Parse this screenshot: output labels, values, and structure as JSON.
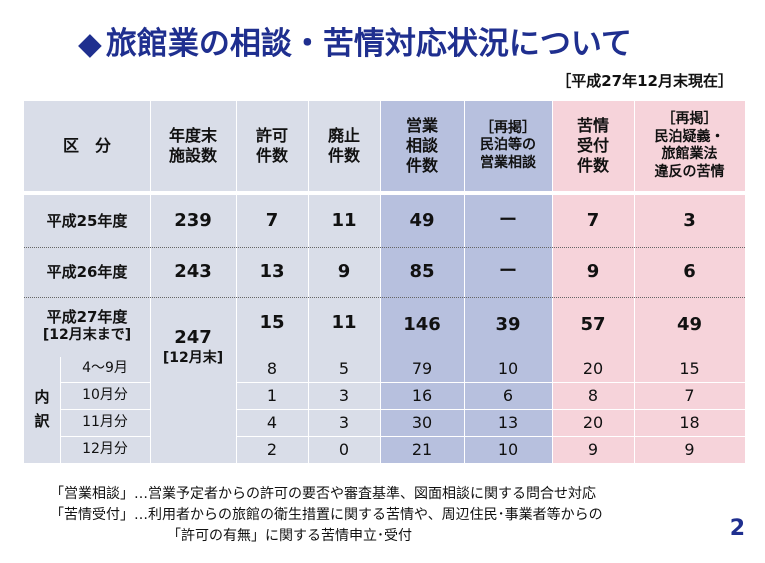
{
  "title": "旅館業の相談・苦情対応状況について",
  "title_marker": "◆",
  "as_of": "［平成27年12月末現在］",
  "headers": {
    "category": "区　分",
    "facilities": [
      "年度末",
      "施設数"
    ],
    "permits": [
      "許可",
      "件数"
    ],
    "closures": [
      "廃止",
      "件数"
    ],
    "business_consult": [
      "営業",
      "相談",
      "件数"
    ],
    "minpaku_consult": [
      "［再掲］",
      "民泊等の",
      "営業相談"
    ],
    "complaints": [
      "苦情",
      "受付",
      "件数"
    ],
    "minpaku_complaints": [
      "［再掲］",
      "民泊疑義・",
      "旅館業法",
      "違反の苦情"
    ]
  },
  "rows": [
    {
      "label": "平成25年度",
      "facilities": "239",
      "permits": "7",
      "closures": "11",
      "business": "49",
      "minpaku": "ー",
      "complaints": "7",
      "minpaku_complaints": "3"
    },
    {
      "label": "平成26年度",
      "facilities": "243",
      "permits": "13",
      "closures": "9",
      "business": "85",
      "minpaku": "ー",
      "complaints": "9",
      "minpaku_complaints": "6"
    },
    {
      "label": "平成27年度",
      "label2": "[12月末まで]",
      "facilities": "247",
      "facilities_note": "[12月末]",
      "permits": "15",
      "closures": "11",
      "business": "146",
      "minpaku": "39",
      "complaints": "57",
      "minpaku_complaints": "49"
    }
  ],
  "breakdown_label": [
    "内",
    "訳"
  ],
  "breakdown": [
    {
      "label": "4～9月",
      "permits": "8",
      "closures": "5",
      "business": "79",
      "minpaku": "10",
      "complaints": "20",
      "minpaku_complaints": "15"
    },
    {
      "label": "10月分",
      "permits": "1",
      "closures": "3",
      "business": "16",
      "minpaku": "6",
      "complaints": "8",
      "minpaku_complaints": "7"
    },
    {
      "label": "11月分",
      "permits": "4",
      "closures": "3",
      "business": "30",
      "minpaku": "13",
      "complaints": "20",
      "minpaku_complaints": "18"
    },
    {
      "label": "12月分",
      "permits": "2",
      "closures": "0",
      "business": "21",
      "minpaku": "10",
      "complaints": "9",
      "minpaku_complaints": "9"
    }
  ],
  "notes": [
    "「営業相談」…営業予定者からの許可の要否や審査基準、図面相談に関する問合せ対応",
    "「苦情受付」…利用者からの旅館の衛生措置に関する苦情や、周辺住民･事業者等からの",
    "「許可の有無」に関する苦情申立･受付"
  ],
  "page_number": "2",
  "colors": {
    "title": "#1f2f8f",
    "gray": "#d9dde8",
    "blue": "#b7c0de",
    "pink": "#f6d3da"
  }
}
